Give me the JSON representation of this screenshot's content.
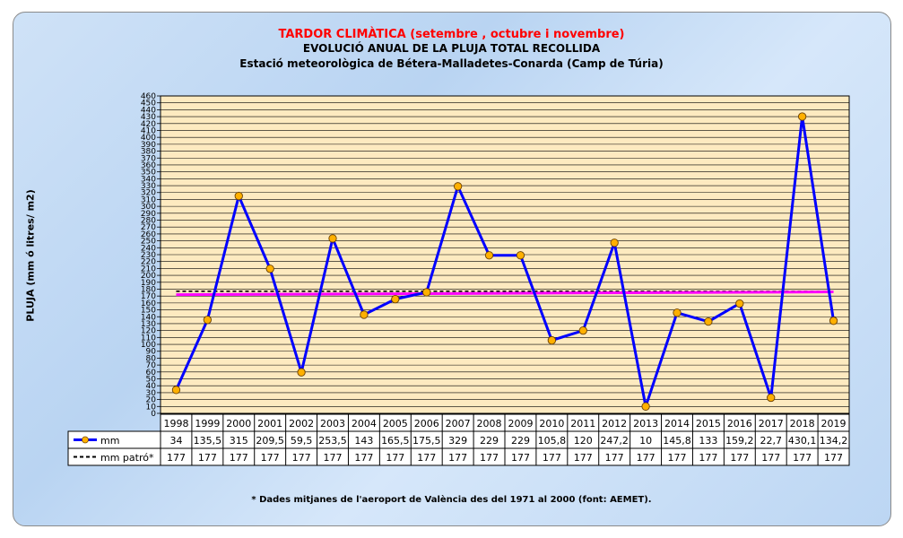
{
  "chart_data": {
    "type": "line",
    "title": "TARDOR CLIMÀTICA (setembre , octubre i novembre)",
    "subtitle1": "EVOLUCIÓ ANUAL DE LA PLUJA TOTAL RECOLLIDA",
    "subtitle2": "Estació meteorològica de Bétera-Malladetes-Conarda (Camp de Túria)",
    "ylabel": "PLUJA (mm ó litres/ m2)",
    "ylim": [
      0,
      460
    ],
    "ytick_step": 10,
    "grid": true,
    "categories": [
      "1998",
      "1999",
      "2000",
      "2001",
      "2002",
      "2003",
      "2004",
      "2005",
      "2006",
      "2007",
      "2008",
      "2009",
      "2010",
      "2011",
      "2012",
      "2013",
      "2014",
      "2015",
      "2016",
      "2017",
      "2018",
      "2019"
    ],
    "series": [
      {
        "name": "mm",
        "color": "#0000ff",
        "marker_color": "#ffb000",
        "values": [
          34,
          135.5,
          315,
          209.5,
          59.5,
          253.5,
          143,
          165.5,
          175.5,
          329,
          229,
          229,
          105.8,
          120,
          247.2,
          10,
          145.8,
          133,
          159.2,
          22.7,
          430.1,
          134.2
        ],
        "labels": [
          "34",
          "135,5",
          "315",
          "209,5",
          "59,5",
          "253,5",
          "143",
          "165,5",
          "175,5",
          "329",
          "229",
          "229",
          "105,8",
          "120",
          "247,2",
          "10",
          "145,8",
          "133",
          "159,2",
          "22,7",
          "430,1",
          "134,2"
        ]
      },
      {
        "name": "mm patró*",
        "color": "#000000",
        "dashed": true,
        "values": [
          177,
          177,
          177,
          177,
          177,
          177,
          177,
          177,
          177,
          177,
          177,
          177,
          177,
          177,
          177,
          177,
          177,
          177,
          177,
          177,
          177,
          177
        ],
        "labels": [
          "177",
          "177",
          "177",
          "177",
          "177",
          "177",
          "177",
          "177",
          "177",
          "177",
          "177",
          "177",
          "177",
          "177",
          "177",
          "177",
          "177",
          "177",
          "177",
          "177",
          "177",
          "177"
        ]
      }
    ],
    "trend_color": "#ff00ff",
    "trend_start": 172,
    "trend_end": 176,
    "plot_bg": "#fdeac0",
    "footnote": "* Dades mitjanes de l'aeroport de València des del 1971 al 2000 (font: AEMET)."
  }
}
